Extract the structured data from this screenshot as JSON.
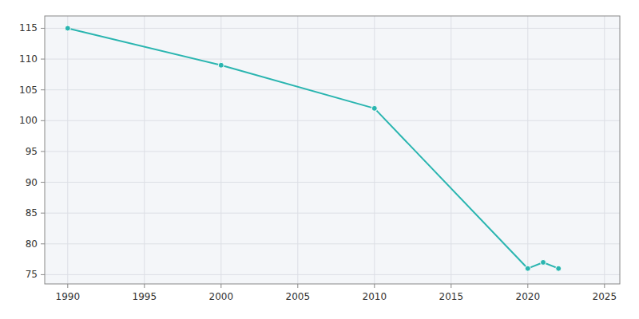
{
  "chart_data": {
    "type": "line",
    "x": [
      1990,
      2000,
      2010,
      2020,
      2021,
      2022
    ],
    "values": [
      115,
      109,
      102,
      76,
      77,
      76
    ],
    "color": "#2ab5b0",
    "marker": "circle",
    "xlim": [
      1988.5,
      2026
    ],
    "ylim": [
      73.5,
      117
    ],
    "xticks": [
      1990,
      1995,
      2000,
      2005,
      2010,
      2015,
      2020,
      2025
    ],
    "yticks": [
      75,
      80,
      85,
      90,
      95,
      100,
      105,
      110,
      115
    ],
    "grid": true
  }
}
